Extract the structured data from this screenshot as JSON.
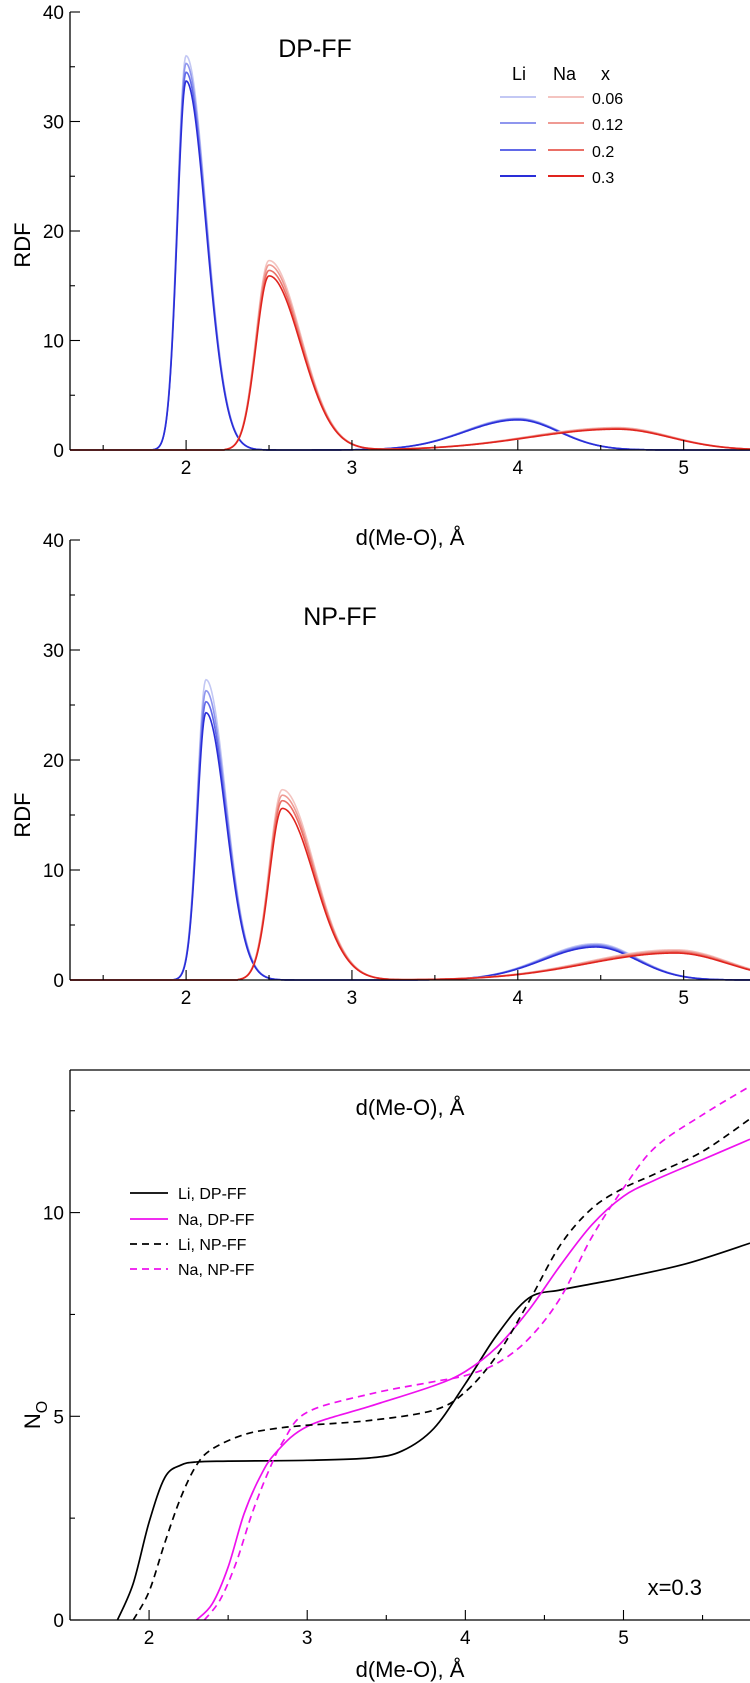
{
  "colors": {
    "li_series": [
      "#c3c8f4",
      "#8f96ee",
      "#6169e8",
      "#2a2ed8"
    ],
    "na_series": [
      "#f4c4c0",
      "#ef9a93",
      "#ea6f66",
      "#e0241e"
    ],
    "black": "#000000",
    "magenta": "#ee11ee"
  },
  "chart_data": [
    {
      "type": "line",
      "title": "DP-FF",
      "xlabel": "d(Me-O), Å",
      "ylabel": "RDF",
      "xlim": [
        1.3,
        5.4
      ],
      "ylim": [
        0,
        40
      ],
      "xticks": [
        "2",
        "3",
        "4",
        "5"
      ],
      "yticks": [
        "0",
        "10",
        "20",
        "30",
        "40"
      ],
      "grid": false,
      "legend": {
        "placement": "top-right",
        "headers": [
          "Li",
          "Na",
          "x"
        ],
        "entries": [
          "0.06",
          "0.12",
          "0.2",
          "0.3"
        ]
      },
      "series": [
        {
          "ion": "Li",
          "x_label": "0.06",
          "peak1": {
            "pos": 2.0,
            "height": 36.0
          },
          "peak2": {
            "pos": 4.0,
            "height": 2.9
          }
        },
        {
          "ion": "Li",
          "x_label": "0.12",
          "peak1": {
            "pos": 2.0,
            "height": 35.3
          },
          "peak2": {
            "pos": 4.0,
            "height": 2.85
          }
        },
        {
          "ion": "Li",
          "x_label": "0.2",
          "peak1": {
            "pos": 2.0,
            "height": 34.5
          },
          "peak2": {
            "pos": 4.0,
            "height": 2.8
          }
        },
        {
          "ion": "Li",
          "x_label": "0.3",
          "peak1": {
            "pos": 2.0,
            "height": 33.7
          },
          "peak2": {
            "pos": 4.0,
            "height": 2.75
          }
        },
        {
          "ion": "Na",
          "x_label": "0.06",
          "peak1": {
            "pos": 2.5,
            "height": 17.3
          },
          "peak2": {
            "pos": 4.6,
            "height": 2.05
          }
        },
        {
          "ion": "Na",
          "x_label": "0.12",
          "peak1": {
            "pos": 2.5,
            "height": 16.9
          },
          "peak2": {
            "pos": 4.6,
            "height": 2.0
          }
        },
        {
          "ion": "Na",
          "x_label": "0.2",
          "peak1": {
            "pos": 2.5,
            "height": 16.4
          },
          "peak2": {
            "pos": 4.6,
            "height": 1.95
          }
        },
        {
          "ion": "Na",
          "x_label": "0.3",
          "peak1": {
            "pos": 2.5,
            "height": 15.9
          },
          "peak2": {
            "pos": 4.6,
            "height": 1.9
          }
        }
      ]
    },
    {
      "type": "line",
      "title": "NP-FF",
      "xlabel": "d(Me-O), Å",
      "ylabel": "RDF",
      "xlim": [
        1.3,
        5.4
      ],
      "ylim": [
        0,
        40
      ],
      "xticks": [
        "2",
        "3",
        "4",
        "5"
      ],
      "yticks": [
        "0",
        "10",
        "20",
        "30",
        "40"
      ],
      "grid": false,
      "series": [
        {
          "ion": "Li",
          "x_label": "0.06",
          "peak1": {
            "pos": 2.12,
            "height": 27.3
          },
          "peak2": {
            "pos": 4.47,
            "height": 3.3
          }
        },
        {
          "ion": "Li",
          "x_label": "0.12",
          "peak1": {
            "pos": 2.12,
            "height": 26.3
          },
          "peak2": {
            "pos": 4.47,
            "height": 3.2
          }
        },
        {
          "ion": "Li",
          "x_label": "0.2",
          "peak1": {
            "pos": 2.12,
            "height": 25.3
          },
          "peak2": {
            "pos": 4.47,
            "height": 3.1
          }
        },
        {
          "ion": "Li",
          "x_label": "0.3",
          "peak1": {
            "pos": 2.12,
            "height": 24.3
          },
          "peak2": {
            "pos": 4.47,
            "height": 3.0
          }
        },
        {
          "ion": "Na",
          "x_label": "0.06",
          "peak1": {
            "pos": 2.58,
            "height": 17.3
          },
          "peak2": {
            "pos": 4.95,
            "height": 2.75
          }
        },
        {
          "ion": "Na",
          "x_label": "0.12",
          "peak1": {
            "pos": 2.58,
            "height": 16.8
          },
          "peak2": {
            "pos": 4.95,
            "height": 2.65
          }
        },
        {
          "ion": "Na",
          "x_label": "0.2",
          "peak1": {
            "pos": 2.58,
            "height": 16.3
          },
          "peak2": {
            "pos": 4.95,
            "height": 2.55
          }
        },
        {
          "ion": "Na",
          "x_label": "0.3",
          "peak1": {
            "pos": 2.58,
            "height": 15.6
          },
          "peak2": {
            "pos": 4.95,
            "height": 2.45
          }
        }
      ]
    },
    {
      "type": "line",
      "title": "",
      "xlabel": "d(Me-O), Å",
      "ylabel": "N",
      "ylabel_sub": "O",
      "xlim": [
        1.5,
        5.8
      ],
      "ylim": [
        0,
        13.5
      ],
      "xticks": [
        "2",
        "3",
        "4",
        "5"
      ],
      "yticks": [
        "0",
        "5",
        "10"
      ],
      "grid": false,
      "annotation": "x=0.3",
      "legend": {
        "placement": "top-left"
      },
      "series": [
        {
          "name": "Li, DP-FF",
          "style": "solid",
          "color": "black",
          "x": [
            1.8,
            1.9,
            2.0,
            2.1,
            2.2,
            2.3,
            2.5,
            3.0,
            3.4,
            3.6,
            3.8,
            4.0,
            4.2,
            4.4,
            4.6,
            4.8,
            5.0,
            5.4,
            5.8
          ],
          "y": [
            0,
            0.9,
            2.4,
            3.5,
            3.8,
            3.88,
            3.9,
            3.92,
            3.98,
            4.15,
            4.7,
            5.8,
            7.0,
            7.9,
            8.1,
            8.25,
            8.4,
            8.75,
            9.25
          ]
        },
        {
          "name": "Na, DP-FF",
          "style": "solid",
          "color": "magenta",
          "x": [
            2.3,
            2.4,
            2.5,
            2.6,
            2.7,
            2.8,
            3.0,
            3.4,
            3.8,
            4.0,
            4.2,
            4.4,
            4.6,
            4.8,
            5.0,
            5.2,
            5.5,
            5.8
          ],
          "y": [
            0,
            0.4,
            1.3,
            2.6,
            3.5,
            4.1,
            4.75,
            5.25,
            5.75,
            6.1,
            6.7,
            7.6,
            8.7,
            9.7,
            10.4,
            10.8,
            11.3,
            11.8
          ]
        },
        {
          "name": "Li, NP-FF",
          "style": "dashed",
          "color": "black",
          "x": [
            1.9,
            2.0,
            2.1,
            2.2,
            2.3,
            2.4,
            2.6,
            2.8,
            3.0,
            3.4,
            3.8,
            4.0,
            4.2,
            4.4,
            4.6,
            4.8,
            5.0,
            5.2,
            5.5,
            5.8
          ],
          "y": [
            0,
            0.7,
            1.9,
            3.0,
            3.8,
            4.2,
            4.55,
            4.7,
            4.78,
            4.9,
            5.15,
            5.6,
            6.5,
            7.8,
            9.2,
            10.1,
            10.6,
            10.95,
            11.5,
            12.3
          ]
        },
        {
          "name": "Na, NP-FF",
          "style": "dashed",
          "color": "magenta",
          "x": [
            2.35,
            2.45,
            2.55,
            2.65,
            2.75,
            2.85,
            3.0,
            3.4,
            3.8,
            4.0,
            4.2,
            4.4,
            4.6,
            4.8,
            5.0,
            5.2,
            5.5,
            5.8
          ],
          "y": [
            0,
            0.5,
            1.4,
            2.6,
            3.6,
            4.4,
            5.1,
            5.55,
            5.85,
            6.0,
            6.3,
            6.9,
            7.9,
            9.4,
            10.6,
            11.6,
            12.4,
            13.1
          ]
        }
      ]
    }
  ]
}
